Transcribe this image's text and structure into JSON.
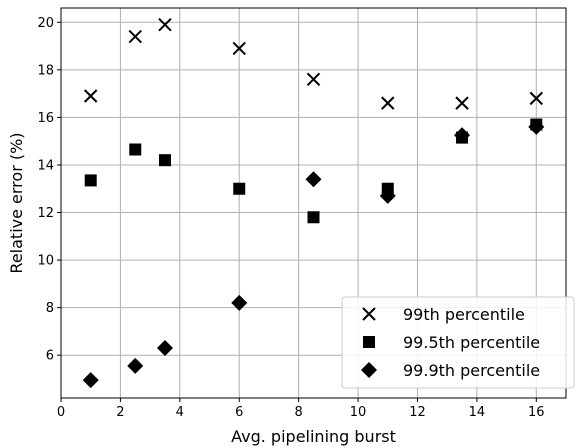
{
  "chart_data": {
    "type": "scatter",
    "title": "",
    "xlabel": "Avg. pipelining burst",
    "ylabel": "Relative error (%)",
    "xlim": [
      0,
      17
    ],
    "ylim": [
      4.2,
      20.6
    ],
    "xticks": [
      0,
      2,
      4,
      6,
      8,
      10,
      12,
      14,
      16
    ],
    "yticks": [
      6,
      8,
      10,
      12,
      14,
      16,
      18,
      20
    ],
    "grid": true,
    "legend_position": "bottom-right",
    "series": [
      {
        "name": "99th percentile",
        "marker": "x",
        "color": "#000000",
        "x": [
          1,
          2.5,
          3.5,
          6,
          8.5,
          11,
          13.5,
          16
        ],
        "y": [
          16.9,
          19.4,
          19.9,
          18.9,
          17.6,
          16.6,
          16.6,
          16.8
        ]
      },
      {
        "name": "99.5th percentile",
        "marker": "square",
        "color": "#000000",
        "x": [
          1,
          2.5,
          3.5,
          6,
          8.5,
          11,
          13.5,
          16
        ],
        "y": [
          13.35,
          14.65,
          14.2,
          13.0,
          11.8,
          13.0,
          15.15,
          15.7
        ]
      },
      {
        "name": "99.9th percentile",
        "marker": "diamond",
        "color": "#000000",
        "x": [
          1,
          2.5,
          3.5,
          6,
          8.5,
          11,
          13.5,
          16
        ],
        "y": [
          4.95,
          5.55,
          6.3,
          8.2,
          13.4,
          12.7,
          15.25,
          15.6
        ]
      }
    ]
  }
}
